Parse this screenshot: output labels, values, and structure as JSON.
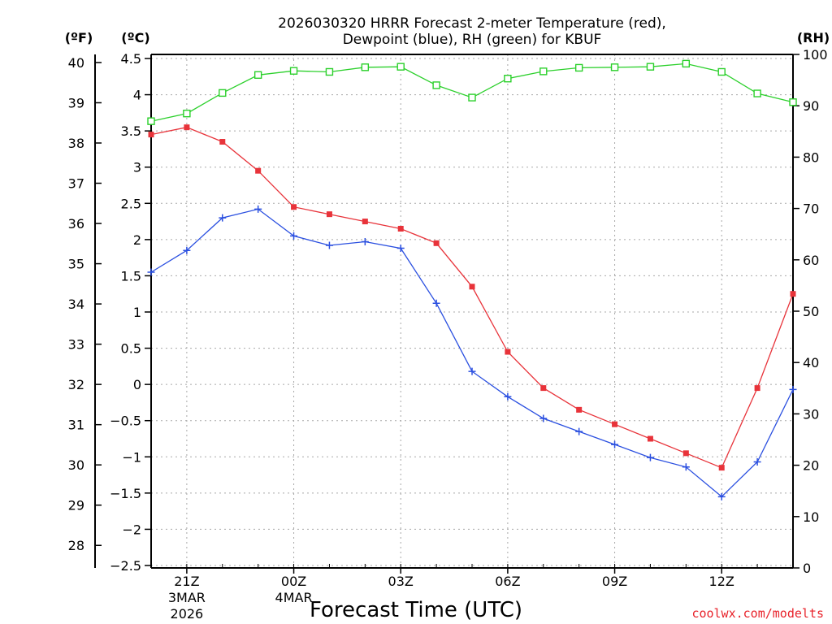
{
  "title_line1": "2026030320 HRRR Forecast 2-meter Temperature (red),",
  "title_line2": "Dewpoint (blue), RH (green) for KBUF",
  "credit": "coolwx.com/modelts",
  "units": {
    "fahrenheit": "(ºF)",
    "celsius": "(ºC)",
    "rh": "(RH)"
  },
  "chart_data": {
    "type": "line",
    "title": "2026030320 HRRR Forecast 2-meter Temperature (red), Dewpoint (blue), RH (green) for KBUF",
    "xlabel": "Forecast Time (UTC)",
    "ylabel_left_celsius": "(ºC)",
    "ylabel_left_fahrenheit": "(ºF)",
    "ylabel_right": "(RH)",
    "x_hours": [
      20,
      21,
      22,
      23,
      24,
      25,
      26,
      27,
      28,
      29,
      30,
      31,
      32,
      33,
      34,
      35,
      36,
      37,
      38
    ],
    "xlim": [
      20,
      38
    ],
    "ylim_celsius": [
      -2.5,
      4.5
    ],
    "ylim_fahrenheit": [
      27.5,
      40.1
    ],
    "ylim_rh": [
      0,
      100
    ],
    "grid": true,
    "x_ticks": [
      {
        "hour": 21,
        "label": "21Z",
        "date1": "3MAR",
        "date2": "2026"
      },
      {
        "hour": 24,
        "label": "00Z",
        "date1": "4MAR",
        "date2": ""
      },
      {
        "hour": 27,
        "label": "03Z",
        "date1": "",
        "date2": ""
      },
      {
        "hour": 30,
        "label": "06Z",
        "date1": "",
        "date2": ""
      },
      {
        "hour": 33,
        "label": "09Z",
        "date1": "",
        "date2": ""
      },
      {
        "hour": 36,
        "label": "12Z",
        "date1": "",
        "date2": ""
      }
    ],
    "celsius_ticks": [
      4.5,
      4,
      3.5,
      3,
      2.5,
      2,
      1.5,
      1,
      0.5,
      0,
      -0.5,
      -1,
      -1.5,
      -2,
      -2.5
    ],
    "celsius_tick_labels": [
      "4.5",
      "4",
      "3.5",
      "3",
      "2.5",
      "2",
      "1.5",
      "1",
      "0.5",
      "0",
      "−0.5",
      "−1",
      "−1.5",
      "−2",
      "−2.5"
    ],
    "fahrenheit_ticks": [
      40,
      39,
      38,
      37,
      36,
      35,
      34,
      33,
      32,
      31,
      30,
      29,
      28
    ],
    "fahrenheit_tick_labels": [
      "40",
      "39",
      "38",
      "37",
      "36",
      "35",
      "34",
      "33",
      "32",
      "31",
      "30",
      "29",
      "28"
    ],
    "rh_ticks": [
      100,
      90,
      80,
      70,
      60,
      50,
      40,
      30,
      20,
      10,
      0
    ],
    "rh_tick_labels": [
      "100",
      "90",
      "80",
      "70",
      "60",
      "50",
      "40",
      "30",
      "20",
      "10",
      "0"
    ],
    "series": [
      {
        "name": "Temperature",
        "axis": "celsius",
        "color": "#e8333a",
        "marker": "filled-square",
        "values": [
          3.45,
          3.55,
          3.35,
          2.95,
          2.45,
          2.35,
          2.25,
          2.15,
          1.95,
          1.35,
          0.45,
          -0.05,
          -0.35,
          -0.55,
          -0.75,
          -0.95,
          -1.15,
          -0.05,
          1.25
        ]
      },
      {
        "name": "Dewpoint",
        "axis": "celsius",
        "color": "#2a4fe0",
        "marker": "plus",
        "values": [
          1.55,
          1.85,
          2.3,
          2.42,
          2.05,
          1.92,
          1.97,
          1.88,
          1.12,
          0.18,
          -0.17,
          -0.47,
          -0.65,
          -0.83,
          -1.01,
          -1.14,
          -1.55,
          -1.07,
          -0.07
        ]
      },
      {
        "name": "RH",
        "axis": "rh",
        "color": "#2bd02b",
        "marker": "open-square",
        "values": [
          87.0,
          88.5,
          92.5,
          96.0,
          96.8,
          96.6,
          97.5,
          97.6,
          94.0,
          91.6,
          95.3,
          96.7,
          97.4,
          97.5,
          97.6,
          98.2,
          96.6,
          92.4,
          90.7
        ]
      }
    ]
  }
}
